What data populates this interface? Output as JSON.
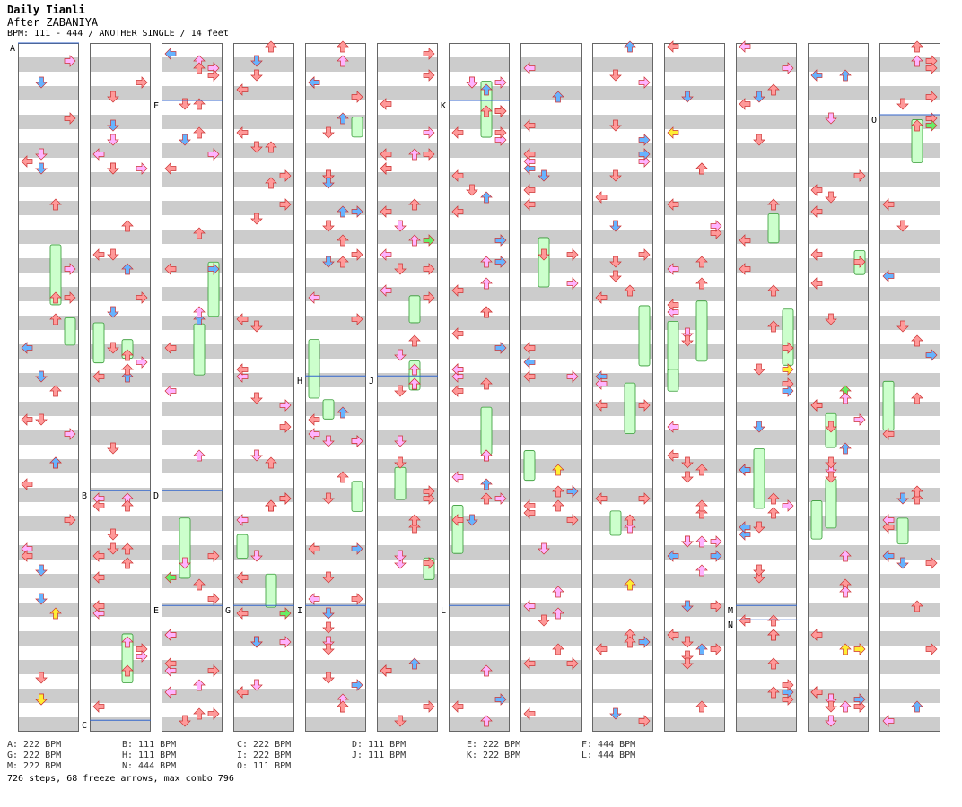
{
  "song": {
    "title": "Daily Tianli",
    "artist": "After ZABANIYA",
    "info": "BPM: 111 - 444 / ANOTHER SINGLE / 14 feet"
  },
  "colors": {
    "background": "#ffffff",
    "stripe": "#cccccc",
    "border": "#666666",
    "red_arrow": "#ff9999",
    "blue_arrow": "#66b3ff",
    "pink_arrow": "#ffb3ff",
    "yellow_arrow": "#ffee33",
    "green_arrow": "#66ee66",
    "freeze": "#ccffcc",
    "bpm_line": "#3366cc"
  },
  "columns": [
    {
      "markers": [
        {
          "label": "A",
          "pos": 0
        }
      ]
    },
    {
      "markers": [
        {
          "label": "B",
          "pos": 7.8
        },
        {
          "label": "C",
          "pos": 11.8
        }
      ]
    },
    {
      "markers": [
        {
          "label": "F",
          "pos": 1
        },
        {
          "label": "D",
          "pos": 7.8
        },
        {
          "label": "E",
          "pos": 9.8
        }
      ]
    },
    {
      "markers": [
        {
          "label": "G",
          "pos": 9.8
        }
      ]
    },
    {
      "markers": [
        {
          "label": "H",
          "pos": 5.8
        },
        {
          "label": "I",
          "pos": 9.8
        }
      ]
    },
    {
      "markers": [
        {
          "label": "J",
          "pos": 5.8
        }
      ]
    },
    {
      "markers": [
        {
          "label": "K",
          "pos": 1
        },
        {
          "label": "L",
          "pos": 9.8
        }
      ]
    },
    {
      "markers": []
    },
    {
      "markers": []
    },
    {
      "markers": []
    },
    {
      "markers": [
        {
          "label": "M",
          "pos": 9.8
        },
        {
          "label": "N",
          "pos": 10.05
        }
      ]
    },
    {
      "markers": []
    },
    {
      "markers": [
        {
          "label": "O",
          "pos": 1.25
        }
      ]
    }
  ],
  "bpm_changes": [
    {
      "label": "A",
      "text": "A: 222 BPM"
    },
    {
      "label": "B",
      "text": "B: 111 BPM"
    },
    {
      "label": "C",
      "text": "C: 222 BPM"
    },
    {
      "label": "D",
      "text": "D: 111 BPM"
    },
    {
      "label": "E",
      "text": "E: 222 BPM"
    },
    {
      "label": "F",
      "text": "F: 444 BPM"
    },
    {
      "label": "G",
      "text": "G: 222 BPM"
    },
    {
      "label": "H",
      "text": "H: 111 BPM"
    },
    {
      "label": "I",
      "text": "I: 222 BPM"
    },
    {
      "label": "J",
      "text": "J: 111 BPM"
    },
    {
      "label": "K",
      "text": "K: 222 BPM"
    },
    {
      "label": "L",
      "text": "L: 444 BPM"
    },
    {
      "label": "M",
      "text": "M: 222 BPM"
    },
    {
      "label": "N",
      "text": "N: 444 BPM"
    },
    {
      "label": "O",
      "text": "O: 111 BPM"
    }
  ],
  "summary": "726 steps, 68 freeze arrows, max combo 796"
}
